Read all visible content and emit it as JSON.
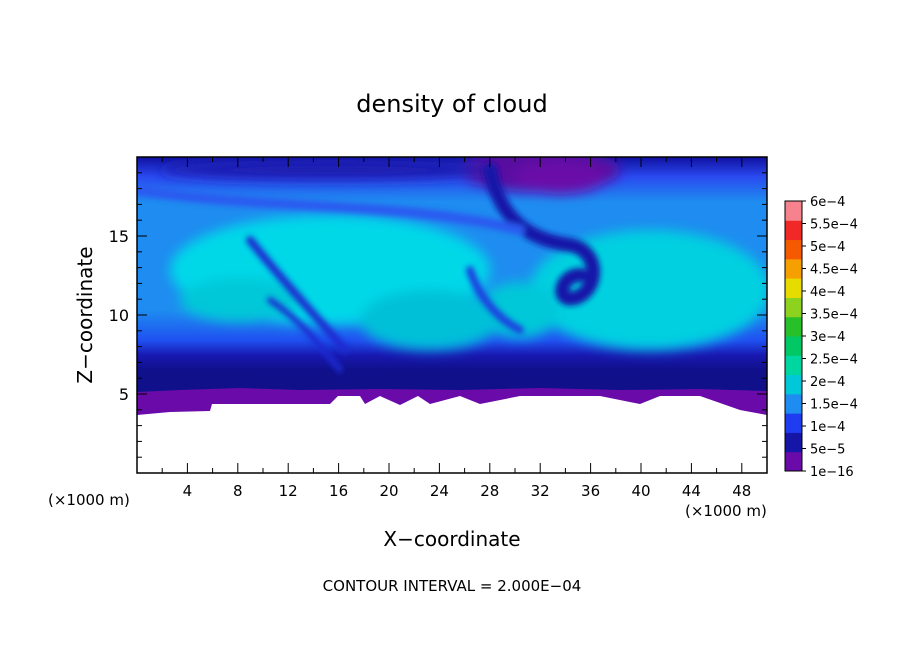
{
  "chart_data": {
    "type": "heatmap",
    "title": "density of cloud",
    "xlabel": "X−coordinate",
    "ylabel": "Z−coordinate",
    "x_unit_left": "(×1000 m)",
    "x_unit_right": "(×1000 m)",
    "footer": "CONTOUR INTERVAL = 2.000E−04",
    "xlim": [
      0,
      50
    ],
    "ylim": [
      0,
      20
    ],
    "x_ticks": [
      "4",
      "8",
      "12",
      "16",
      "20",
      "24",
      "28",
      "32",
      "36",
      "40",
      "44",
      "48"
    ],
    "y_ticks": [
      "5",
      "10",
      "15"
    ],
    "colorbar": {
      "labels": [
        "1e−16",
        "5e−5",
        "1e−4",
        "1.5e−4",
        "2e−4",
        "2.5e−4",
        "3e−4",
        "3.5e−4",
        "4e−4",
        "4.5e−4",
        "5e−4",
        "5.5e−4",
        "6e−4"
      ],
      "colors": [
        "#6a0aa8",
        "#1515a8",
        "#1f3cf0",
        "#1e8cf0",
        "#00c8d8",
        "#00d6a0",
        "#00c864",
        "#28c028",
        "#8cd21e",
        "#e6dc00",
        "#f5a000",
        "#f55a00",
        "#f02828",
        "#f5828c"
      ]
    }
  }
}
